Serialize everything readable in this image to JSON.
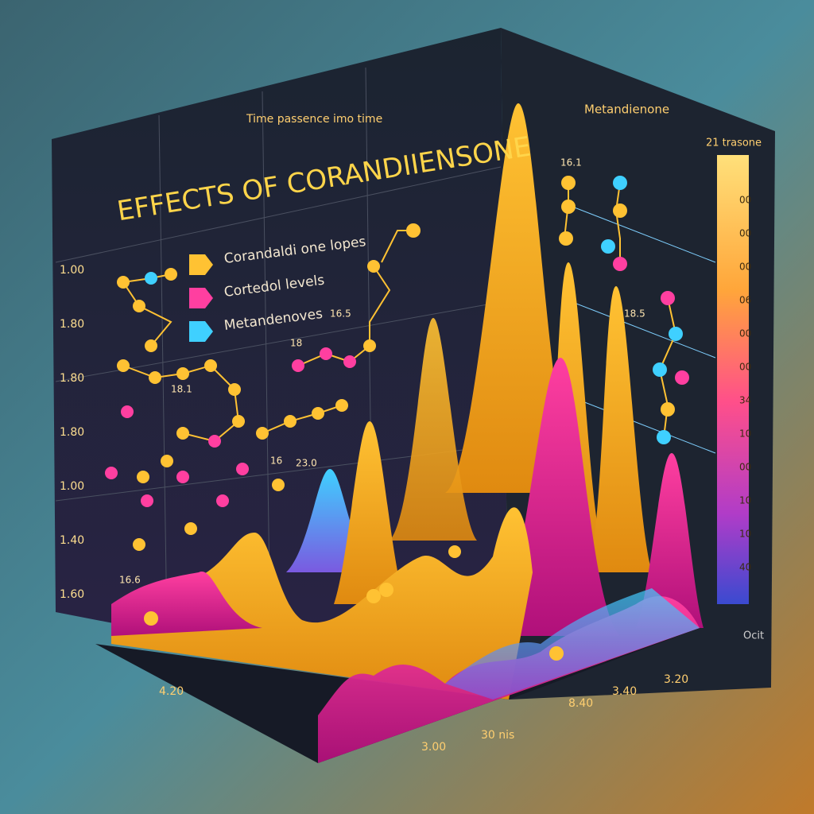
{
  "header": {
    "top_label": "Time passence imo time",
    "right_label": "Metandienone",
    "colorbar_title": "21 trasone"
  },
  "title": "Effects of Corandiiensone",
  "legend": [
    "Corandaldi one lopes",
    "Cortedol levels",
    "Metandenoves"
  ],
  "left_axis": [
    "1.00",
    "1.80",
    "1.80",
    "1.80",
    "1.00",
    "1.40",
    "1.60"
  ],
  "colorbar_labels": [
    "00",
    "00",
    "00",
    "06",
    "00",
    "00",
    "34",
    "10",
    "00",
    "10",
    "10",
    "40"
  ],
  "colorbar_footer": "Ocit",
  "bottom_axis": [
    "4.20",
    "3.00",
    "30 nis",
    "8.40",
    "3.40",
    "3.20"
  ],
  "annotations": [
    "16.1",
    "18.5",
    "16.5",
    "18",
    "18.1",
    "16",
    "23.0",
    "16.6"
  ]
}
